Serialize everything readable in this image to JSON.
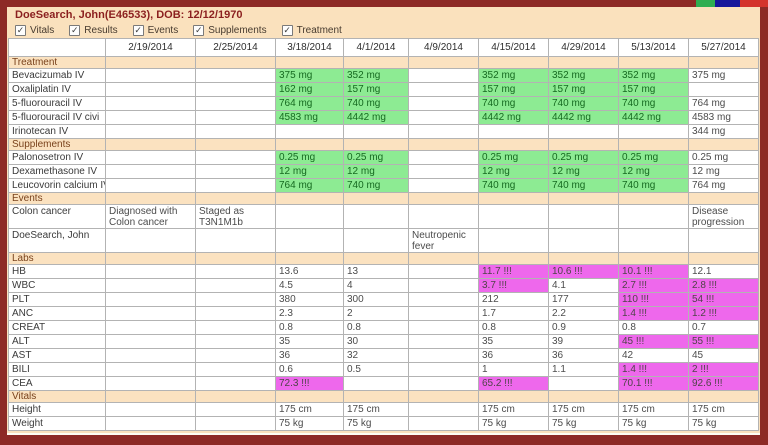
{
  "window": {
    "title": "DoeSearch, John(E46533), DOB: 12/12/1970",
    "topbar": {
      "bar_color": "#8d2a26",
      "segments": [
        {
          "name": "green",
          "color": "#2fae52"
        },
        {
          "name": "navy",
          "color": "#17179b"
        },
        {
          "name": "red",
          "color": "#d4332c"
        }
      ]
    }
  },
  "filters": {
    "items": [
      {
        "label": "Vitals",
        "checked": true
      },
      {
        "label": "Results",
        "checked": true
      },
      {
        "label": "Events",
        "checked": true
      },
      {
        "label": "Supplements",
        "checked": true
      },
      {
        "label": "Treatment",
        "checked": true
      }
    ]
  },
  "colors": {
    "frame": "#8d2a26",
    "header_bg": "#fae1bd",
    "section_bg": "#fbe2c0",
    "green_bg": "#8deb93",
    "green_text": "#166a20",
    "magenta_bg": "#ee68ec",
    "title_text": "#8b1f1f"
  },
  "grid": {
    "date_columns": [
      "2/19/2014",
      "2/25/2014",
      "3/18/2014",
      "4/1/2014",
      "4/9/2014",
      "4/15/2014",
      "4/29/2014",
      "5/13/2014",
      "5/27/2014"
    ],
    "sections": [
      {
        "title": "Treatment",
        "rows": [
          {
            "label": "Bevacizumab IV",
            "cells": [
              {
                "t": ""
              },
              {
                "t": ""
              },
              {
                "t": "375 mg",
                "h": "g"
              },
              {
                "t": "352 mg",
                "h": "g"
              },
              {
                "t": ""
              },
              {
                "t": "352 mg",
                "h": "g"
              },
              {
                "t": "352 mg",
                "h": "g"
              },
              {
                "t": "352 mg",
                "h": "g"
              },
              {
                "t": "375 mg"
              }
            ]
          },
          {
            "label": "Oxaliplatin IV",
            "cells": [
              {
                "t": ""
              },
              {
                "t": ""
              },
              {
                "t": "162 mg",
                "h": "g"
              },
              {
                "t": "157 mg",
                "h": "g"
              },
              {
                "t": ""
              },
              {
                "t": "157 mg",
                "h": "g"
              },
              {
                "t": "157 mg",
                "h": "g"
              },
              {
                "t": "157 mg",
                "h": "g"
              },
              {
                "t": ""
              }
            ]
          },
          {
            "label": "5-fluorouracil IV",
            "cells": [
              {
                "t": ""
              },
              {
                "t": ""
              },
              {
                "t": "764 mg",
                "h": "g"
              },
              {
                "t": "740 mg",
                "h": "g"
              },
              {
                "t": ""
              },
              {
                "t": "740 mg",
                "h": "g"
              },
              {
                "t": "740 mg",
                "h": "g"
              },
              {
                "t": "740 mg",
                "h": "g"
              },
              {
                "t": "764 mg"
              }
            ]
          },
          {
            "label": "5-fluorouracil IV civi",
            "cells": [
              {
                "t": ""
              },
              {
                "t": ""
              },
              {
                "t": "4583 mg",
                "h": "g"
              },
              {
                "t": "4442 mg",
                "h": "g"
              },
              {
                "t": ""
              },
              {
                "t": "4442 mg",
                "h": "g"
              },
              {
                "t": "4442 mg",
                "h": "g"
              },
              {
                "t": "4442 mg",
                "h": "g"
              },
              {
                "t": "4583 mg"
              }
            ]
          },
          {
            "label": "Irinotecan IV",
            "cells": [
              {
                "t": ""
              },
              {
                "t": ""
              },
              {
                "t": ""
              },
              {
                "t": ""
              },
              {
                "t": ""
              },
              {
                "t": ""
              },
              {
                "t": ""
              },
              {
                "t": ""
              },
              {
                "t": "344 mg"
              }
            ]
          }
        ]
      },
      {
        "title": "Supplements",
        "rows": [
          {
            "label": "Palonosetron IV",
            "cells": [
              {
                "t": ""
              },
              {
                "t": ""
              },
              {
                "t": "0.25 mg",
                "h": "g"
              },
              {
                "t": "0.25 mg",
                "h": "g"
              },
              {
                "t": ""
              },
              {
                "t": "0.25 mg",
                "h": "g"
              },
              {
                "t": "0.25 mg",
                "h": "g"
              },
              {
                "t": "0.25 mg",
                "h": "g"
              },
              {
                "t": "0.25 mg"
              }
            ]
          },
          {
            "label": "Dexamethasone IV",
            "cells": [
              {
                "t": ""
              },
              {
                "t": ""
              },
              {
                "t": "12 mg",
                "h": "g"
              },
              {
                "t": "12 mg",
                "h": "g"
              },
              {
                "t": ""
              },
              {
                "t": "12 mg",
                "h": "g"
              },
              {
                "t": "12 mg",
                "h": "g"
              },
              {
                "t": "12 mg",
                "h": "g"
              },
              {
                "t": "12 mg"
              }
            ]
          },
          {
            "label": "Leucovorin calcium IV",
            "cells": [
              {
                "t": ""
              },
              {
                "t": ""
              },
              {
                "t": "764 mg",
                "h": "g"
              },
              {
                "t": "740 mg",
                "h": "g"
              },
              {
                "t": ""
              },
              {
                "t": "740 mg",
                "h": "g"
              },
              {
                "t": "740 mg",
                "h": "g"
              },
              {
                "t": "740 mg",
                "h": "g"
              },
              {
                "t": "764 mg"
              }
            ]
          }
        ]
      },
      {
        "title": "Events",
        "tall": true,
        "rows": [
          {
            "label": "Colon cancer",
            "cells": [
              {
                "t": "Diagnosed with Colon cancer"
              },
              {
                "t": "Staged as T3N1M1b"
              },
              {
                "t": ""
              },
              {
                "t": ""
              },
              {
                "t": ""
              },
              {
                "t": ""
              },
              {
                "t": ""
              },
              {
                "t": ""
              },
              {
                "t": "Disease progression"
              }
            ]
          },
          {
            "label": "DoeSearch, John",
            "cells": [
              {
                "t": ""
              },
              {
                "t": ""
              },
              {
                "t": ""
              },
              {
                "t": ""
              },
              {
                "t": "Neutropenic fever"
              },
              {
                "t": ""
              },
              {
                "t": ""
              },
              {
                "t": ""
              },
              {
                "t": ""
              }
            ]
          }
        ]
      },
      {
        "title": "Labs",
        "rows": [
          {
            "label": "HB",
            "cells": [
              {
                "t": ""
              },
              {
                "t": ""
              },
              {
                "t": "13.6"
              },
              {
                "t": "13"
              },
              {
                "t": ""
              },
              {
                "t": "11.7 !!!",
                "h": "m"
              },
              {
                "t": "10.6 !!!",
                "h": "m"
              },
              {
                "t": "10.1 !!!",
                "h": "m"
              },
              {
                "t": "12.1"
              }
            ]
          },
          {
            "label": "WBC",
            "cells": [
              {
                "t": ""
              },
              {
                "t": ""
              },
              {
                "t": "4.5"
              },
              {
                "t": "4"
              },
              {
                "t": ""
              },
              {
                "t": "3.7 !!!",
                "h": "m"
              },
              {
                "t": "4.1"
              },
              {
                "t": "2.7 !!!",
                "h": "m"
              },
              {
                "t": "2.8 !!!",
                "h": "m"
              }
            ]
          },
          {
            "label": "PLT",
            "cells": [
              {
                "t": ""
              },
              {
                "t": ""
              },
              {
                "t": "380"
              },
              {
                "t": "300"
              },
              {
                "t": ""
              },
              {
                "t": "212"
              },
              {
                "t": "177"
              },
              {
                "t": "110 !!!",
                "h": "m"
              },
              {
                "t": "54 !!!",
                "h": "m"
              }
            ]
          },
          {
            "label": "ANC",
            "cells": [
              {
                "t": ""
              },
              {
                "t": ""
              },
              {
                "t": "2.3"
              },
              {
                "t": "2"
              },
              {
                "t": ""
              },
              {
                "t": "1.7"
              },
              {
                "t": "2.2"
              },
              {
                "t": "1.4 !!!",
                "h": "m"
              },
              {
                "t": "1.2 !!!",
                "h": "m"
              }
            ]
          },
          {
            "label": "CREAT",
            "cells": [
              {
                "t": ""
              },
              {
                "t": ""
              },
              {
                "t": "0.8"
              },
              {
                "t": "0.8"
              },
              {
                "t": ""
              },
              {
                "t": "0.8"
              },
              {
                "t": "0.9"
              },
              {
                "t": "0.8"
              },
              {
                "t": "0.7"
              }
            ]
          },
          {
            "label": "ALT",
            "cells": [
              {
                "t": ""
              },
              {
                "t": ""
              },
              {
                "t": "35"
              },
              {
                "t": "30"
              },
              {
                "t": ""
              },
              {
                "t": "35"
              },
              {
                "t": "39"
              },
              {
                "t": "45 !!!",
                "h": "m"
              },
              {
                "t": "55 !!!",
                "h": "m"
              }
            ]
          },
          {
            "label": "AST",
            "cells": [
              {
                "t": ""
              },
              {
                "t": ""
              },
              {
                "t": "36"
              },
              {
                "t": "32"
              },
              {
                "t": ""
              },
              {
                "t": "36"
              },
              {
                "t": "36"
              },
              {
                "t": "42"
              },
              {
                "t": "45"
              }
            ]
          },
          {
            "label": "BILI",
            "cells": [
              {
                "t": ""
              },
              {
                "t": ""
              },
              {
                "t": "0.6"
              },
              {
                "t": "0.5"
              },
              {
                "t": ""
              },
              {
                "t": "1"
              },
              {
                "t": "1.1"
              },
              {
                "t": "1.4 !!!",
                "h": "m"
              },
              {
                "t": "2 !!!",
                "h": "m"
              }
            ]
          },
          {
            "label": "CEA",
            "cells": [
              {
                "t": ""
              },
              {
                "t": ""
              },
              {
                "t": "72.3 !!!",
                "h": "m"
              },
              {
                "t": ""
              },
              {
                "t": ""
              },
              {
                "t": "65.2 !!!",
                "h": "m"
              },
              {
                "t": ""
              },
              {
                "t": "70.1 !!!",
                "h": "m"
              },
              {
                "t": "92.6 !!!",
                "h": "m"
              }
            ]
          }
        ]
      },
      {
        "title": "Vitals",
        "rows": [
          {
            "label": "Height",
            "cells": [
              {
                "t": ""
              },
              {
                "t": ""
              },
              {
                "t": "175 cm"
              },
              {
                "t": "175 cm"
              },
              {
                "t": ""
              },
              {
                "t": "175 cm"
              },
              {
                "t": "175 cm"
              },
              {
                "t": "175 cm"
              },
              {
                "t": "175 cm"
              }
            ]
          },
          {
            "label": "Weight",
            "cells": [
              {
                "t": ""
              },
              {
                "t": ""
              },
              {
                "t": "75 kg"
              },
              {
                "t": "75 kg"
              },
              {
                "t": ""
              },
              {
                "t": "75 kg"
              },
              {
                "t": "75 kg"
              },
              {
                "t": "75 kg"
              },
              {
                "t": "75 kg"
              }
            ]
          }
        ]
      }
    ]
  }
}
